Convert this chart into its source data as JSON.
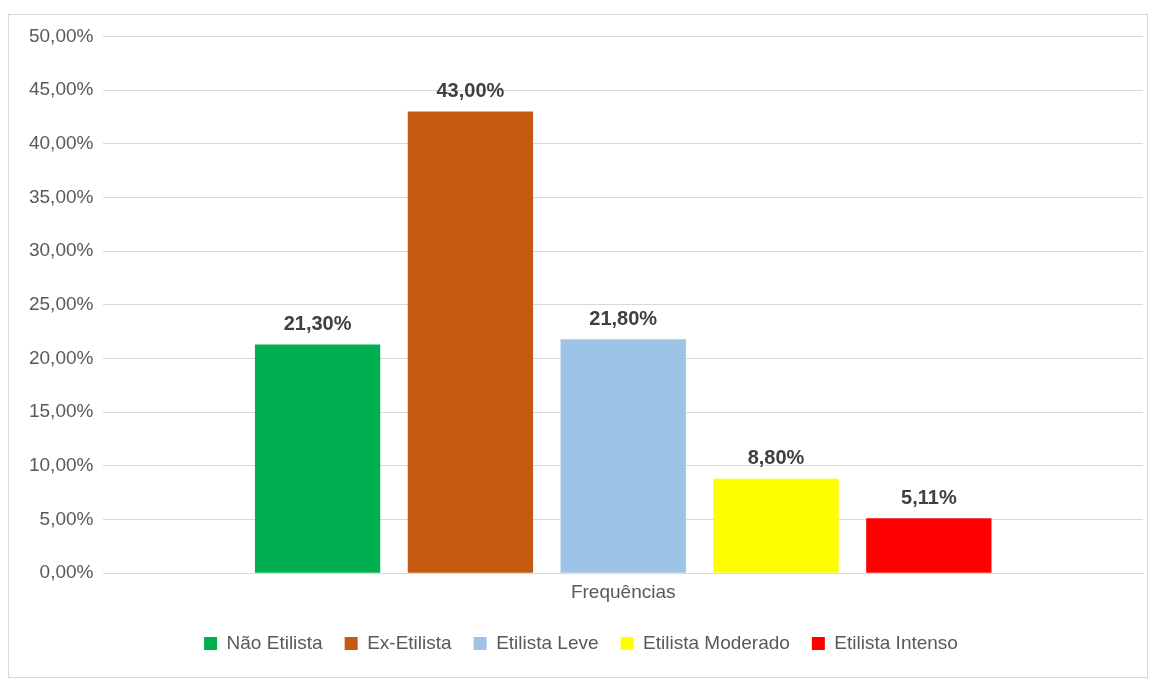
{
  "chart_data": {
    "type": "bar",
    "categories": [
      "Frequências"
    ],
    "series": [
      {
        "name": "Não Etilista",
        "color": "#00b050",
        "values": [
          21.3
        ],
        "value_labels": [
          "21,30%"
        ]
      },
      {
        "name": "Ex-Etilista",
        "color": "#c55a11",
        "values": [
          43.0
        ],
        "value_labels": [
          "43,00%"
        ]
      },
      {
        "name": "Etilista Leve",
        "color": "#9dc3e6",
        "values": [
          21.8
        ],
        "value_labels": [
          "21,80%"
        ]
      },
      {
        "name": "Etilista Moderado",
        "color": "#ffff00",
        "values": [
          8.8
        ],
        "value_labels": [
          "8,80%"
        ]
      },
      {
        "name": "Etilista Intenso",
        "color": "#ff0000",
        "values": [
          5.11
        ],
        "value_labels": [
          "5,11%"
        ]
      }
    ],
    "ylim": [
      0,
      50
    ],
    "yticks": [
      {
        "value": 0,
        "label": "0,00%"
      },
      {
        "value": 5,
        "label": "5,00%"
      },
      {
        "value": 10,
        "label": "10,00%"
      },
      {
        "value": 15,
        "label": "15,00%"
      },
      {
        "value": 20,
        "label": "20,00%"
      },
      {
        "value": 25,
        "label": "25,00%"
      },
      {
        "value": 30,
        "label": "30,00%"
      },
      {
        "value": 35,
        "label": "35,00%"
      },
      {
        "value": 40,
        "label": "40,00%"
      },
      {
        "value": 45,
        "label": "45,00%"
      },
      {
        "value": 50,
        "label": "50,00%"
      }
    ],
    "grid": "y",
    "legend": "bottom"
  }
}
